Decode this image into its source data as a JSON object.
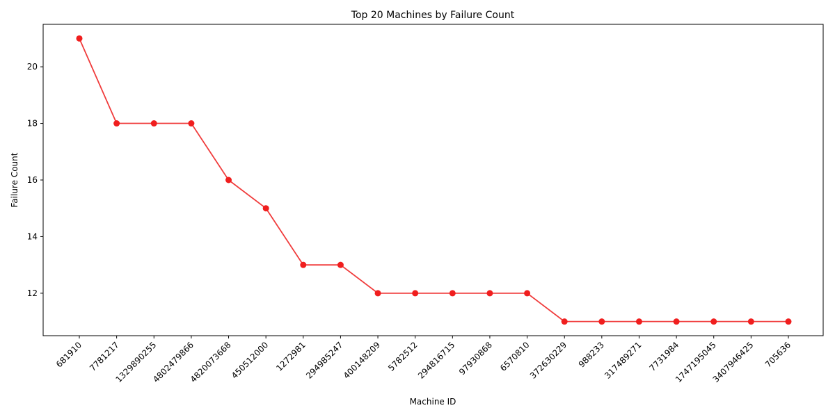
{
  "chart_data": {
    "type": "line",
    "title": "Top 20 Machines by Failure Count",
    "xlabel": "Machine ID",
    "ylabel": "Failure Count",
    "categories": [
      "681910",
      "7781217",
      "1329890255",
      "4802479866",
      "4820073668",
      "450512000",
      "1272981",
      "294985247",
      "400148209",
      "5782512",
      "294816715",
      "97930868",
      "6570810",
      "372630229",
      "988233",
      "317489271",
      "7731984",
      "1747195045",
      "3407946425",
      "705636"
    ],
    "values": [
      21,
      18,
      18,
      18,
      16,
      15,
      13,
      13,
      12,
      12,
      12,
      12,
      12,
      11,
      11,
      11,
      11,
      11,
      11,
      11
    ],
    "ylim": [
      10.5,
      21.5
    ],
    "yticks": [
      12,
      14,
      16,
      18,
      20
    ],
    "grid": false,
    "line_color": "#f03c3c",
    "marker_color": "#f01e1e"
  }
}
